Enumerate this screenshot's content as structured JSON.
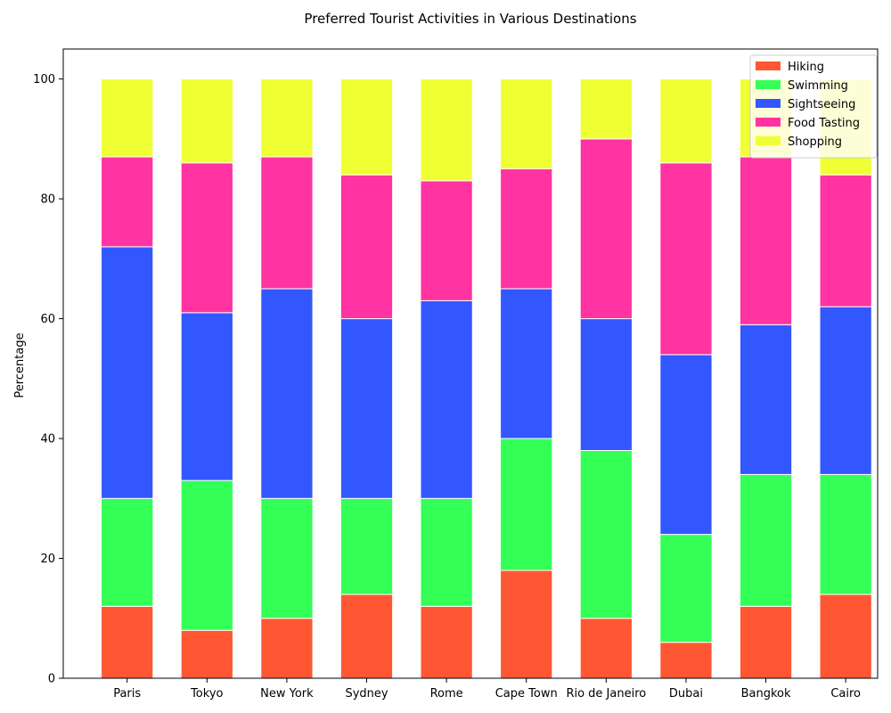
{
  "chart_data": {
    "type": "bar",
    "stacked": true,
    "title": "Preferred Tourist Activities in Various Destinations",
    "xlabel": "",
    "ylabel": "Percentage",
    "ylim": [
      0,
      105
    ],
    "yticks": [
      0,
      20,
      40,
      60,
      80,
      100
    ],
    "grid": false,
    "legend_position": "top-right",
    "categories": [
      "Paris",
      "Tokyo",
      "New York",
      "Sydney",
      "Rome",
      "Cape Town",
      "Rio de Janeiro",
      "Dubai",
      "Bangkok",
      "Cairo"
    ],
    "series": [
      {
        "name": "Hiking",
        "color": "#ff5733",
        "values": [
          12,
          8,
          10,
          14,
          12,
          18,
          10,
          6,
          12,
          14
        ]
      },
      {
        "name": "Swimming",
        "color": "#33ff57",
        "values": [
          18,
          25,
          20,
          16,
          18,
          22,
          28,
          18,
          22,
          20
        ]
      },
      {
        "name": "Sightseeing",
        "color": "#3357ff",
        "values": [
          42,
          28,
          35,
          30,
          33,
          25,
          22,
          30,
          25,
          28
        ]
      },
      {
        "name": "Food Tasting",
        "color": "#ff33a1",
        "values": [
          15,
          25,
          22,
          24,
          20,
          20,
          30,
          32,
          28,
          22
        ]
      },
      {
        "name": "Shopping",
        "color": "#f0ff33",
        "values": [
          13,
          14,
          13,
          16,
          17,
          15,
          10,
          14,
          13,
          16
        ]
      }
    ]
  }
}
